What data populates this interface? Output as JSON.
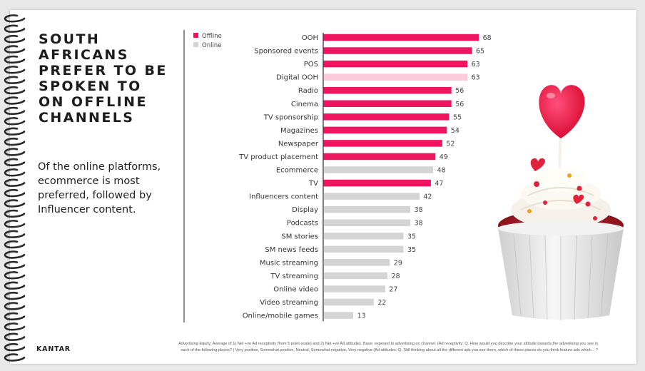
{
  "headline": "SOUTH\nAFRICANS\nPREFER TO BE\nSPOKEN TO\nON OFFLINE\nCHANNELS",
  "subtext": "Of the online platforms,\necommerce is most\npreferred, followed by\nInfluencer content.",
  "brand": "KANTAR",
  "footnote": "Advertising Equity: Average of 1) Net +ve Ad receptivity (from 5 point-scale) and 2) Net +ve Ad attitudes. Base: exposed to advertising on channel. (Ad receptivity: Q. How would you describe your attitude towards the advertising you see in each of the following places? | Very positive, Somewhat positive, Neutral, Somewhat negative, Very negative (Ad attitudes: Q. Still thinking about all the different ads you see there, which of these places do you think feature ads which... ?",
  "colors": {
    "offline": "#f0155f",
    "online": "#d4d4d4",
    "digital_ooh": "#fccbda",
    "axis": "#333333"
  },
  "chart_data": {
    "type": "bar",
    "orientation": "horizontal",
    "legend": [
      {
        "name": "Offline",
        "color": "#f0155f"
      },
      {
        "name": "Online",
        "color": "#d4d4d4"
      }
    ],
    "legend_position": "top-left",
    "xlim": [
      0,
      75
    ],
    "grid": false,
    "data_labels": true,
    "categories": [
      "OOH",
      "Sponsored events",
      "POS",
      "Digital OOH",
      "Radio",
      "Cinema",
      "TV sponsorship",
      "Magazines",
      "Newspaper",
      "TV product placement",
      "Ecommerce",
      "TV",
      "Influencers content",
      "Display",
      "Podcasts",
      "SM stories",
      "SM news feeds",
      "Music streaming",
      "TV streaming",
      "Online video",
      "Video streaming",
      "Online/mobile games"
    ],
    "values": [
      68,
      65,
      63,
      63,
      56,
      56,
      55,
      54,
      52,
      49,
      48,
      47,
      42,
      38,
      38,
      35,
      35,
      29,
      28,
      27,
      22,
      13
    ],
    "groups": [
      "offline",
      "offline",
      "offline",
      "digital_ooh",
      "offline",
      "offline",
      "offline",
      "offline",
      "offline",
      "offline",
      "online",
      "offline",
      "online",
      "online",
      "online",
      "online",
      "online",
      "online",
      "online",
      "online",
      "online",
      "online"
    ]
  }
}
